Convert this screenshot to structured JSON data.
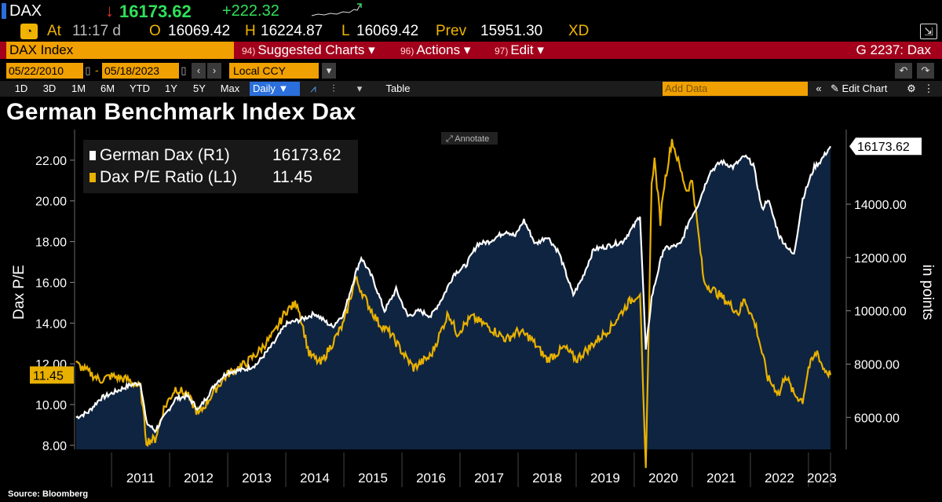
{
  "ticker": {
    "symbol": "DAX",
    "direction_arrow": "↓",
    "last_price": "16173.62",
    "change": "+222.32"
  },
  "quote": {
    "clock_icon": "clock-icon",
    "at_label": "At",
    "time": "11:17 d",
    "open_label": "O",
    "open": "16069.42",
    "high_label": "H",
    "high": "16224.87",
    "low_label": "L",
    "low": "16069.42",
    "prev_label": "Prev",
    "prev": "15951.30",
    "exchange": "XD"
  },
  "menu": {
    "security": "DAX Index",
    "suggested_num": "94)",
    "suggested": "Suggested Charts ▾",
    "actions_num": "96)",
    "actions": "Actions ▾",
    "edit_num": "97)",
    "edit": "Edit ▾",
    "function_code": "G 2237: Dax"
  },
  "dates": {
    "start": "05/22/2010",
    "end": "05/18/2023",
    "currency": "Local CCY"
  },
  "periods": [
    "1D",
    "3D",
    "1M",
    "6M",
    "YTD",
    "1Y",
    "5Y",
    "Max"
  ],
  "toolbar": {
    "frequency": "Daily ▼",
    "table_label": "Table",
    "add_data_placeholder": "Add Data",
    "edit_chart": "Edit Chart"
  },
  "title": "German Benchmark Index Dax",
  "annotate_label": "Annotate",
  "source": "Source: Bloomberg",
  "colors": {
    "dax": "#ffffff",
    "pe": "#e8b100",
    "area": "#0f2440",
    "accent_orange": "#f0a000",
    "menu_red": "#a3001b"
  },
  "chart_data": {
    "type": "line",
    "title": "German Benchmark Index Dax",
    "xlabel": "",
    "ylabel_left": "Dax P/E",
    "ylabel_right": "in points",
    "x_ticks": [
      "2011",
      "2012",
      "2013",
      "2014",
      "2015",
      "2016",
      "2017",
      "2018",
      "2019",
      "2020",
      "2021",
      "2022",
      "2023"
    ],
    "ylim_left": [
      7.8,
      23.5
    ],
    "yticks_left": [
      8.0,
      10.0,
      12.0,
      14.0,
      16.0,
      18.0,
      20.0,
      22.0
    ],
    "yticks_left_labels": [
      "8.00",
      "10.00",
      "12.00",
      "14.00",
      "16.00",
      "18.00",
      "20.00",
      "22.00"
    ],
    "ylim_right": [
      4800,
      16800
    ],
    "yticks_right": [
      6000,
      8000,
      10000,
      12000,
      14000
    ],
    "yticks_right_labels": [
      "6000.00",
      "8000.00",
      "10000.00",
      "12000.00",
      "14000.00"
    ],
    "legend": [
      {
        "name": "German Dax (R1)",
        "value": "16173.62"
      },
      {
        "name": "Dax P/E Ratio (L1)",
        "value": "11.45"
      }
    ],
    "last_value_labels": {
      "left": "11.45",
      "right": "16173.62"
    },
    "series": [
      {
        "name": "German Dax (R1)",
        "axis": "right",
        "x": [
          2010.39,
          2010.6,
          2010.8,
          2011.0,
          2011.3,
          2011.5,
          2011.6,
          2011.75,
          2011.9,
          2012.1,
          2012.3,
          2012.5,
          2012.8,
          2013.0,
          2013.3,
          2013.5,
          2013.8,
          2014.0,
          2014.3,
          2014.5,
          2014.8,
          2015.0,
          2015.2,
          2015.3,
          2015.5,
          2015.7,
          2015.9,
          2016.1,
          2016.3,
          2016.5,
          2016.7,
          2016.9,
          2017.1,
          2017.3,
          2017.5,
          2017.8,
          2017.95,
          2018.1,
          2018.3,
          2018.5,
          2018.7,
          2018.95,
          2019.1,
          2019.3,
          2019.5,
          2019.8,
          2020.0,
          2020.1,
          2020.2,
          2020.3,
          2020.5,
          2020.8,
          2020.95,
          2021.1,
          2021.3,
          2021.5,
          2021.7,
          2021.9,
          2022.05,
          2022.2,
          2022.3,
          2022.5,
          2022.7,
          2022.75,
          2022.9,
          2023.0,
          2023.1,
          2023.2,
          2023.38
        ],
        "values": [
          6000,
          6200,
          6700,
          6900,
          7200,
          7300,
          5800,
          5500,
          6000,
          6700,
          6800,
          6300,
          7300,
          7700,
          7800,
          8000,
          8800,
          9500,
          9700,
          9900,
          9400,
          9900,
          11400,
          12000,
          11200,
          10000,
          10800,
          9800,
          10000,
          9800,
          10500,
          11400,
          11700,
          12500,
          12600,
          13000,
          12800,
          13400,
          12500,
          12800,
          12200,
          10600,
          11200,
          12300,
          12400,
          12600,
          13200,
          13600,
          8500,
          10500,
          12300,
          12500,
          13400,
          14000,
          15200,
          15600,
          15400,
          15800,
          15500,
          13800,
          14200,
          12800,
          12200,
          12100,
          14200,
          14800,
          15400,
          15600,
          16173.62
        ]
      },
      {
        "name": "Dax P/E Ratio (L1)",
        "axis": "left",
        "x": [
          2010.39,
          2010.6,
          2010.8,
          2011.0,
          2011.3,
          2011.5,
          2011.6,
          2011.75,
          2011.9,
          2012.1,
          2012.3,
          2012.5,
          2012.8,
          2013.0,
          2013.3,
          2013.5,
          2013.8,
          2014.0,
          2014.2,
          2014.4,
          2014.6,
          2014.8,
          2015.0,
          2015.2,
          2015.4,
          2015.6,
          2015.8,
          2016.0,
          2016.2,
          2016.5,
          2016.8,
          2016.95,
          2017.2,
          2017.5,
          2017.8,
          2018.0,
          2018.2,
          2018.5,
          2018.8,
          2019.0,
          2019.3,
          2019.6,
          2019.9,
          2020.1,
          2020.15,
          2020.2,
          2020.3,
          2020.35,
          2020.45,
          2020.5,
          2020.65,
          2020.8,
          2020.9,
          2021.0,
          2021.2,
          2021.5,
          2021.8,
          2021.9,
          2022.1,
          2022.3,
          2022.5,
          2022.6,
          2022.75,
          2022.9,
          2023.0,
          2023.15,
          2023.25,
          2023.38
        ],
        "values": [
          12.0,
          11.6,
          11.2,
          11.4,
          11.2,
          10.8,
          8.2,
          8.3,
          9.8,
          10.8,
          10.5,
          9.5,
          10.8,
          11.5,
          12.0,
          12.5,
          13.5,
          14.6,
          15.0,
          12.5,
          12.0,
          13.0,
          14.0,
          16.2,
          15.0,
          14.0,
          13.5,
          12.6,
          11.8,
          12.4,
          14.5,
          13.5,
          14.3,
          13.8,
          13.2,
          13.6,
          13.3,
          12.2,
          12.8,
          12.2,
          13.0,
          13.8,
          15.0,
          15.5,
          10.8,
          6.7,
          21.0,
          22.0,
          19.0,
          20.5,
          23.0,
          21.5,
          20.5,
          21.0,
          16.0,
          15.3,
          14.5,
          15.2,
          13.8,
          11.3,
          10.5,
          11.5,
          10.5,
          10.2,
          11.8,
          12.6,
          11.8,
          11.45
        ]
      }
    ]
  }
}
